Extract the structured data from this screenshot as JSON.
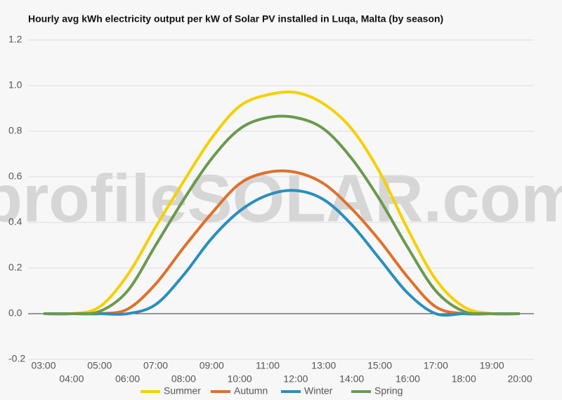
{
  "chart_data": {
    "type": "line",
    "title": "Hourly avg kWh electricity output per kW of Solar PV installed in Luqa, Malta (by season)",
    "watermark": "profileSOLAR.com",
    "categories": [
      "03:00",
      "04:00",
      "05:00",
      "06:00",
      "07:00",
      "08:00",
      "09:00",
      "10:00",
      "11:00",
      "12:00",
      "13:00",
      "14:00",
      "15:00",
      "16:00",
      "17:00",
      "18:00",
      "19:00",
      "20:00"
    ],
    "series": [
      {
        "name": "Summer",
        "color": "#f5d000",
        "values": [
          0,
          0,
          0.03,
          0.17,
          0.38,
          0.58,
          0.77,
          0.91,
          0.96,
          0.97,
          0.92,
          0.81,
          0.62,
          0.37,
          0.15,
          0.03,
          0,
          0
        ]
      },
      {
        "name": "Autumn",
        "color": "#e0702a",
        "values": [
          0,
          0,
          0,
          0.02,
          0.13,
          0.29,
          0.44,
          0.57,
          0.62,
          0.62,
          0.57,
          0.46,
          0.32,
          0.16,
          0.03,
          0,
          0,
          0
        ]
      },
      {
        "name": "Winter",
        "color": "#2a8fbd",
        "values": [
          0,
          0,
          0,
          0,
          0.04,
          0.17,
          0.33,
          0.45,
          0.52,
          0.54,
          0.5,
          0.39,
          0.24,
          0.09,
          0,
          0,
          0,
          0
        ]
      },
      {
        "name": "Spring",
        "color": "#6a9a4e",
        "values": [
          0,
          0,
          0.01,
          0.1,
          0.3,
          0.5,
          0.68,
          0.81,
          0.86,
          0.86,
          0.81,
          0.68,
          0.5,
          0.29,
          0.1,
          0.01,
          0,
          0
        ]
      }
    ],
    "ylim": [
      -0.2,
      1.2
    ],
    "yticks": [
      -0.2,
      {
        "value": 0,
        "label": "0.0"
      },
      0.2,
      0.4,
      0.6,
      0.8,
      {
        "value": 1,
        "label": "1.0"
      },
      1.2
    ],
    "grid": true,
    "legend": "bottom"
  }
}
